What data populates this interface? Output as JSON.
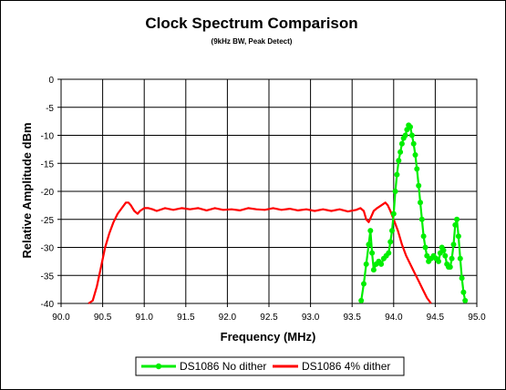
{
  "chart_data": {
    "type": "line",
    "title": "Clock Spectrum Comparison",
    "subtitle": "(9kHz BW, Peak Detect)",
    "xlabel": "Frequency (MHz)",
    "ylabel": "Relative Amplitude dBm",
    "xlim": [
      90.0,
      95.0
    ],
    "ylim": [
      -40,
      0
    ],
    "x_ticks": [
      "90.0",
      "90.5",
      "91.0",
      "91.5",
      "92.0",
      "92.5",
      "93.0",
      "93.5",
      "94.0",
      "94.5",
      "95.0"
    ],
    "y_ticks": [
      "0",
      "-5",
      "-10",
      "-15",
      "-20",
      "-25",
      "-30",
      "-35",
      "-40"
    ],
    "grid": true,
    "legend_position": "bottom",
    "series": [
      {
        "name": "DS1086 No dither",
        "color": "#00ee00",
        "marker": "circle",
        "x": [
          93.61,
          93.64,
          93.67,
          93.7,
          93.72,
          93.74,
          93.76,
          93.79,
          93.82,
          93.85,
          93.88,
          93.91,
          93.94,
          93.96,
          93.98,
          94.0,
          94.02,
          94.04,
          94.06,
          94.08,
          94.1,
          94.12,
          94.14,
          94.16,
          94.18,
          94.2,
          94.22,
          94.24,
          94.26,
          94.28,
          94.3,
          94.32,
          94.34,
          94.36,
          94.38,
          94.4,
          94.42,
          94.45,
          94.48,
          94.51,
          94.54,
          94.56,
          94.58,
          94.6,
          94.62,
          94.64,
          94.66,
          94.68,
          94.7,
          94.72,
          94.74,
          94.76,
          94.78,
          94.8,
          94.82,
          94.84,
          94.86
        ],
        "y": [
          -39.5,
          -36.5,
          -33,
          -29.5,
          -27,
          -31,
          -34,
          -33,
          -32.5,
          -33,
          -32,
          -31.5,
          -31,
          -29,
          -27,
          -24,
          -20,
          -17,
          -14.5,
          -13,
          -11.5,
          -10.5,
          -10,
          -9,
          -8.2,
          -8.5,
          -10,
          -11.5,
          -13.5,
          -16,
          -19,
          -22,
          -25,
          -28,
          -30,
          -31.5,
          -32.5,
          -32,
          -31.5,
          -32,
          -32.5,
          -31,
          -30,
          -30.5,
          -31.5,
          -33,
          -33.5,
          -33.5,
          -32,
          -29.5,
          -26,
          -25,
          -28,
          -32,
          -35.5,
          -38,
          -39.5
        ]
      },
      {
        "name": "DS1086 4% dither",
        "color": "#ff0000",
        "marker": "none",
        "x": [
          90.33,
          90.38,
          90.43,
          90.48,
          90.53,
          90.58,
          90.63,
          90.68,
          90.73,
          90.78,
          90.81,
          90.84,
          90.88,
          90.92,
          90.95,
          91.0,
          91.05,
          91.1,
          91.15,
          91.25,
          91.35,
          91.45,
          91.55,
          91.65,
          91.75,
          91.85,
          91.95,
          92.05,
          92.15,
          92.25,
          92.35,
          92.45,
          92.55,
          92.65,
          92.75,
          92.85,
          92.95,
          93.05,
          93.15,
          93.25,
          93.35,
          93.45,
          93.55,
          93.6,
          93.64,
          93.67,
          93.7,
          93.73,
          93.76,
          93.8,
          93.85,
          93.9,
          93.93,
          93.96,
          94.0,
          94.05,
          94.1,
          94.15,
          94.2,
          94.25,
          94.3,
          94.35,
          94.4,
          94.45
        ],
        "y": [
          -40,
          -39.5,
          -37,
          -33.5,
          -30,
          -27.5,
          -25.5,
          -24,
          -23,
          -22,
          -22,
          -22.5,
          -23.5,
          -24,
          -23.5,
          -23,
          -23,
          -23.2,
          -23.5,
          -23,
          -23.3,
          -23,
          -23.2,
          -23,
          -23.4,
          -23,
          -23.3,
          -23.2,
          -23.4,
          -23,
          -23.2,
          -23.3,
          -23,
          -23.3,
          -23.1,
          -23.4,
          -23.2,
          -23.5,
          -23.2,
          -23.5,
          -23.2,
          -23.6,
          -23.3,
          -23,
          -23.5,
          -25,
          -25.5,
          -24.5,
          -23.5,
          -23,
          -22.5,
          -22,
          -22.5,
          -23.5,
          -25,
          -27,
          -29.5,
          -31.5,
          -33,
          -34.5,
          -36,
          -37.5,
          -39,
          -40
        ]
      }
    ]
  }
}
